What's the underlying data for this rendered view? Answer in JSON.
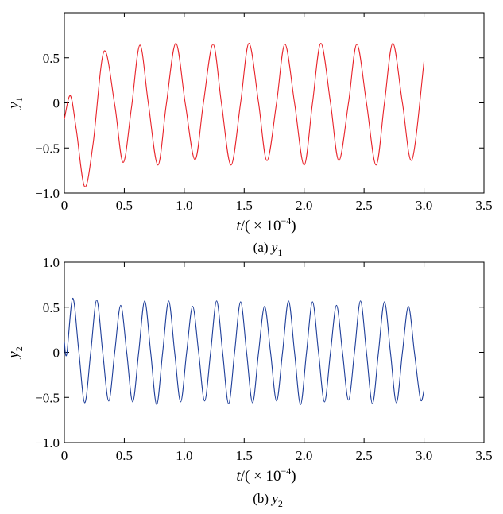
{
  "chart_data": [
    {
      "type": "line",
      "caption_prefix": "(a)",
      "caption_var": "y",
      "caption_sub": "1",
      "xlabel_prefix": "t",
      "xlabel_mid": "/(",
      "xlabel_times": "×",
      "xlabel_base": "10",
      "xlabel_exp": "−4",
      "xlabel_close": ")",
      "ylabel_var": "y",
      "ylabel_sub": "1",
      "xlim": [
        0,
        3.5
      ],
      "ylim": [
        -1.0,
        1.0
      ],
      "xticks": [
        0,
        0.5,
        1.0,
        1.5,
        2.0,
        2.5,
        3.0,
        3.5
      ],
      "xtick_labels": [
        "0",
        "0.5",
        "1.0",
        "1.5",
        "2.0",
        "2.5",
        "3.0",
        "3.5"
      ],
      "yticks": [
        -1.0,
        -0.5,
        0,
        0.5
      ],
      "ytick_labels": [
        "−1.0",
        "−0.5",
        "0",
        "0.5"
      ],
      "grid": false,
      "series": [
        {
          "color": "#e8232a",
          "x": [
            0.0,
            0.05,
            0.1,
            0.17,
            0.24,
            0.33,
            0.42,
            0.49,
            0.56,
            0.63,
            0.7,
            0.78,
            0.85,
            0.93,
            1.01,
            1.09,
            1.16,
            1.24,
            1.31,
            1.39,
            1.47,
            1.54,
            1.62,
            1.69,
            1.77,
            1.84,
            1.92,
            2.0,
            2.07,
            2.14,
            2.22,
            2.29,
            2.37,
            2.44,
            2.52,
            2.6,
            2.67,
            2.74,
            2.82,
            2.9,
            3.0
          ],
          "y": [
            -0.18,
            0.08,
            -0.3,
            -0.93,
            -0.45,
            0.57,
            -0.02,
            -0.66,
            -0.05,
            0.64,
            0.0,
            -0.69,
            -0.02,
            0.66,
            -0.02,
            -0.63,
            0.0,
            0.65,
            0.0,
            -0.69,
            0.0,
            0.66,
            0.0,
            -0.64,
            0.0,
            0.65,
            0.0,
            -0.69,
            0.0,
            0.66,
            0.0,
            -0.64,
            0.0,
            0.65,
            0.0,
            -0.69,
            0.0,
            0.66,
            0.0,
            -0.63,
            0.46
          ]
        }
      ]
    },
    {
      "type": "line",
      "caption_prefix": "(b)",
      "caption_var": "y",
      "caption_sub": "2",
      "xlabel_prefix": "t",
      "xlabel_mid": "/(",
      "xlabel_times": "×",
      "xlabel_base": "10",
      "xlabel_exp": "−4",
      "xlabel_close": ")",
      "ylabel_var": "y",
      "ylabel_sub": "2",
      "xlim": [
        0,
        3.5
      ],
      "ylim": [
        -1.0,
        1.0
      ],
      "xticks": [
        0,
        0.5,
        1.0,
        1.5,
        2.0,
        2.5,
        3.0,
        3.5
      ],
      "xtick_labels": [
        "0",
        "0.5",
        "1.0",
        "1.5",
        "2.0",
        "2.5",
        "3.0",
        "3.5"
      ],
      "yticks": [
        -1.0,
        -0.5,
        0,
        0.5,
        1.0
      ],
      "ytick_labels": [
        "−1.0",
        "−0.5",
        "0",
        "0.5",
        "1.0"
      ],
      "grid": false,
      "series": [
        {
          "color": "#1f3f9a",
          "x": [
            0.0,
            0.02,
            0.07,
            0.12,
            0.17,
            0.22,
            0.27,
            0.32,
            0.37,
            0.42,
            0.47,
            0.52,
            0.57,
            0.62,
            0.67,
            0.72,
            0.77,
            0.82,
            0.87,
            0.92,
            0.97,
            1.02,
            1.07,
            1.12,
            1.17,
            1.22,
            1.27,
            1.32,
            1.37,
            1.42,
            1.47,
            1.52,
            1.57,
            1.62,
            1.67,
            1.72,
            1.77,
            1.82,
            1.87,
            1.92,
            1.97,
            2.02,
            2.07,
            2.12,
            2.17,
            2.22,
            2.27,
            2.32,
            2.37,
            2.42,
            2.47,
            2.52,
            2.57,
            2.62,
            2.67,
            2.72,
            2.77,
            2.82,
            2.87,
            2.92,
            2.97,
            3.0
          ],
          "y": [
            0.12,
            -0.02,
            0.6,
            0.02,
            -0.56,
            0.0,
            0.58,
            0.0,
            -0.54,
            0.0,
            0.52,
            0.0,
            -0.55,
            0.0,
            0.57,
            0.0,
            -0.58,
            0.0,
            0.57,
            0.0,
            -0.55,
            0.0,
            0.51,
            0.0,
            -0.54,
            0.0,
            0.57,
            0.0,
            -0.57,
            0.0,
            0.56,
            0.0,
            -0.56,
            0.0,
            0.51,
            0.0,
            -0.54,
            0.0,
            0.57,
            0.0,
            -0.58,
            0.0,
            0.56,
            0.0,
            -0.55,
            0.0,
            0.52,
            0.0,
            -0.53,
            0.0,
            0.57,
            0.0,
            -0.57,
            0.0,
            0.56,
            0.0,
            -0.56,
            0.0,
            0.51,
            0.0,
            -0.52,
            -0.42
          ]
        }
      ]
    }
  ]
}
